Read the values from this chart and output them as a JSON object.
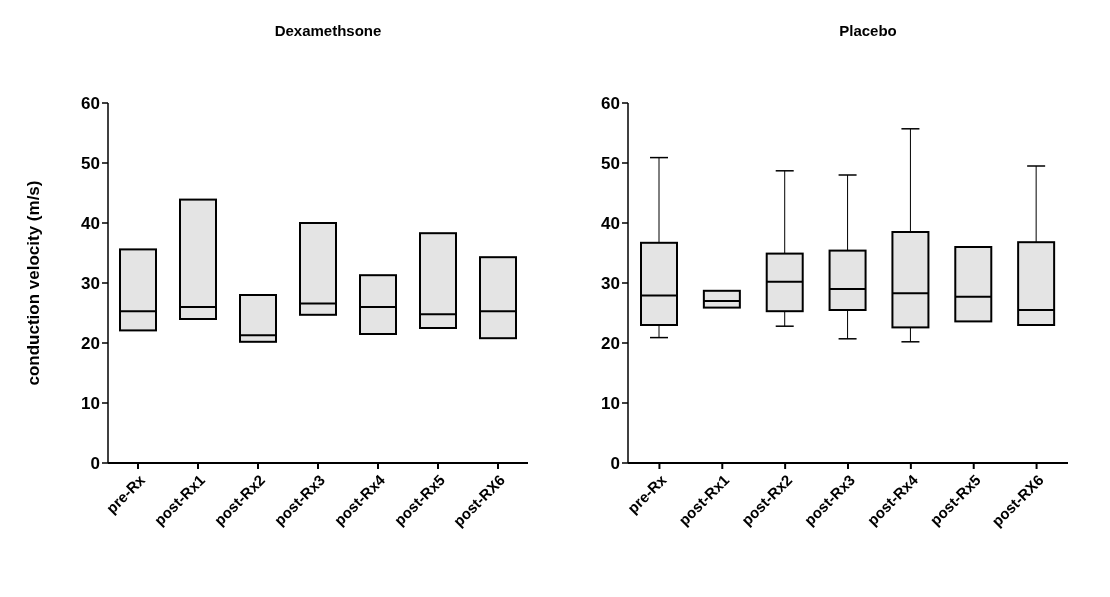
{
  "chart_data": [
    {
      "type": "box",
      "title": "Dexamethsone",
      "ylabel": "conduction velocity (m/s)",
      "categories": [
        "pre-Rx",
        "post-Rx1",
        "post-Rx2",
        "post-Rx3",
        "post-Rx4",
        "post-Rx5",
        "post-RX6"
      ],
      "color": "#e4e4e4",
      "ylim": [
        0,
        60
      ],
      "yticks": [
        0,
        10,
        20,
        30,
        40,
        50,
        60
      ],
      "grid": false,
      "boxes": [
        {
          "low": 22.1,
          "q1": 22.1,
          "median": 25.3,
          "q3": 35.6,
          "high": 35.6
        },
        {
          "low": 24,
          "q1": 24,
          "median": 26,
          "q3": 43.9,
          "high": 43.9
        },
        {
          "low": 20.2,
          "q1": 20.2,
          "median": 21.3,
          "q3": 28,
          "high": 28
        },
        {
          "low": 24.7,
          "q1": 24.7,
          "median": 26.6,
          "q3": 40,
          "high": 40
        },
        {
          "low": 21.5,
          "q1": 21.5,
          "median": 26,
          "q3": 31.3,
          "high": 31.3
        },
        {
          "low": 22.5,
          "q1": 22.5,
          "median": 24.8,
          "q3": 38.3,
          "high": 38.3
        },
        {
          "low": 20.8,
          "q1": 20.8,
          "median": 25.3,
          "q3": 34.3,
          "high": 34.3
        }
      ]
    },
    {
      "type": "box",
      "title": "Placebo",
      "categories": [
        "pre-Rx",
        "post-Rx1",
        "post-Rx2",
        "post-Rx3",
        "post-Rx4",
        "post-Rx5",
        "post-RX6"
      ],
      "color": "#e4e4e4",
      "ylim": [
        0,
        60
      ],
      "yticks": [
        0,
        10,
        20,
        30,
        40,
        50,
        60
      ],
      "grid": false,
      "boxes": [
        {
          "low": 20.9,
          "q1": 23,
          "median": 27.9,
          "q3": 36.7,
          "high": 50.9
        },
        {
          "low": 25.9,
          "q1": 25.9,
          "median": 27,
          "q3": 28.7,
          "high": 28.7
        },
        {
          "low": 22.8,
          "q1": 25.3,
          "median": 30.2,
          "q3": 34.9,
          "high": 48.7
        },
        {
          "low": 20.7,
          "q1": 25.5,
          "median": 29,
          "q3": 35.4,
          "high": 48
        },
        {
          "low": 20.2,
          "q1": 22.6,
          "median": 28.3,
          "q3": 38.5,
          "high": 55.7
        },
        {
          "low": 23.6,
          "q1": 23.6,
          "median": 27.7,
          "q3": 36,
          "high": 36
        },
        {
          "low": 23,
          "q1": 23,
          "median": 25.5,
          "q3": 36.8,
          "high": 49.5
        }
      ]
    }
  ]
}
